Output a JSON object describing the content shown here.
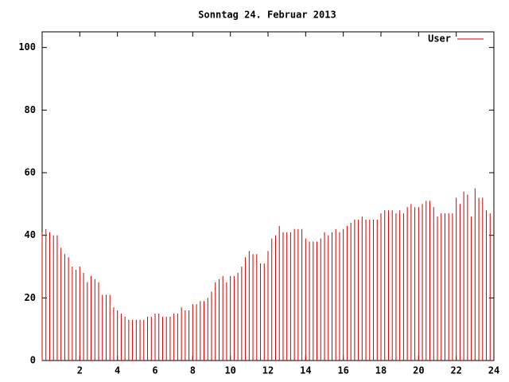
{
  "chart_data": {
    "type": "impulse",
    "title": "Sonntag 24. Februar 2013",
    "series": [
      {
        "name": "User",
        "color": "#cc0000",
        "x": [
          0,
          0.2,
          0.4,
          0.6,
          0.8,
          1,
          1.2,
          1.4,
          1.6,
          1.8,
          2,
          2.2,
          2.4,
          2.6,
          2.8,
          3,
          3.2,
          3.4,
          3.6,
          3.8,
          4,
          4.2,
          4.4,
          4.6,
          4.8,
          5,
          5.2,
          5.4,
          5.6,
          5.8,
          6,
          6.2,
          6.4,
          6.6,
          6.8,
          7,
          7.2,
          7.4,
          7.6,
          7.8,
          8,
          8.2,
          8.4,
          8.6,
          8.8,
          9,
          9.2,
          9.4,
          9.6,
          9.8,
          10,
          10.2,
          10.4,
          10.6,
          10.8,
          11,
          11.2,
          11.4,
          11.6,
          11.8,
          12,
          12.2,
          12.4,
          12.6,
          12.8,
          13,
          13.2,
          13.4,
          13.6,
          13.8,
          14,
          14.2,
          14.4,
          14.6,
          14.8,
          15,
          15.2,
          15.4,
          15.6,
          15.8,
          16,
          16.2,
          16.4,
          16.6,
          16.8,
          17,
          17.2,
          17.4,
          17.6,
          17.8,
          18,
          18.2,
          18.4,
          18.6,
          18.8,
          19,
          19.2,
          19.4,
          19.6,
          19.8,
          20,
          20.2,
          20.4,
          20.6,
          20.8,
          21,
          21.2,
          21.4,
          21.6,
          21.8,
          22,
          22.2,
          22.4,
          22.6,
          22.8,
          23,
          23.2,
          23.4,
          23.6,
          23.8
        ],
        "values": [
          41,
          42,
          41,
          40,
          40,
          36,
          34,
          33,
          30,
          29,
          30,
          28,
          25,
          27,
          26,
          25,
          21,
          21,
          21,
          17,
          16,
          15,
          14,
          13,
          13,
          13,
          13,
          13,
          14,
          14,
          15,
          15,
          14,
          14,
          14,
          15,
          15,
          17,
          16,
          16,
          18,
          18,
          19,
          19,
          20,
          22,
          25,
          26,
          27,
          25,
          27,
          27,
          28,
          30,
          33,
          35,
          34,
          34,
          31,
          31,
          35,
          39,
          40,
          43,
          41,
          41,
          41,
          42,
          42,
          42,
          39,
          38,
          38,
          38,
          39,
          41,
          40,
          41,
          42,
          41,
          42,
          43,
          44,
          45,
          45,
          46,
          45,
          45,
          45,
          45,
          47,
          48,
          48,
          48,
          47,
          48,
          47,
          49,
          50,
          49,
          49,
          50,
          51,
          51,
          49,
          46,
          47,
          47,
          47,
          47,
          52,
          50,
          54,
          53,
          46,
          55,
          52,
          52,
          48,
          47
        ]
      }
    ],
    "xlim": [
      0,
      24
    ],
    "xticks": [
      2,
      4,
      6,
      8,
      10,
      12,
      14,
      16,
      18,
      20,
      22,
      24
    ],
    "ylim": [
      0,
      105
    ],
    "yticks": [
      0,
      20,
      40,
      60,
      80,
      100
    ]
  }
}
